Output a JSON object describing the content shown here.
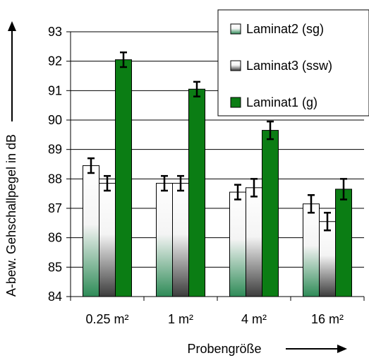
{
  "chart_data": {
    "type": "bar",
    "title": "",
    "xlabel": "Probengröße",
    "ylabel": "A-bew. Gehschallpegel in dB",
    "categories": [
      "0.25 m²",
      "1 m²",
      "4 m²",
      "16 m²"
    ],
    "ylim": [
      84,
      93
    ],
    "yticks": [
      84,
      85,
      86,
      87,
      88,
      89,
      90,
      91,
      92,
      93
    ],
    "grid": true,
    "legend_position": "top-right",
    "series": [
      {
        "name": "Laminat2 (sg)",
        "values": [
          88.45,
          87.85,
          87.55,
          87.15
        ],
        "errors": [
          0.25,
          0.25,
          0.25,
          0.3
        ],
        "fill_top": "#ffffff",
        "fill_bottom": "#2e8b57"
      },
      {
        "name": "Laminat3 (ssw)",
        "values": [
          87.85,
          87.85,
          87.7,
          86.55
        ],
        "errors": [
          0.25,
          0.25,
          0.3,
          0.3
        ],
        "fill_top": "#ffffff",
        "fill_bottom": "#3c3c3c"
      },
      {
        "name": "Laminat1 (g)",
        "values": [
          92.05,
          91.05,
          89.65,
          87.65
        ],
        "errors": [
          0.25,
          0.25,
          0.3,
          0.35
        ],
        "fill_top": "#0b7d14",
        "fill_bottom": "#0b7d14"
      }
    ]
  }
}
